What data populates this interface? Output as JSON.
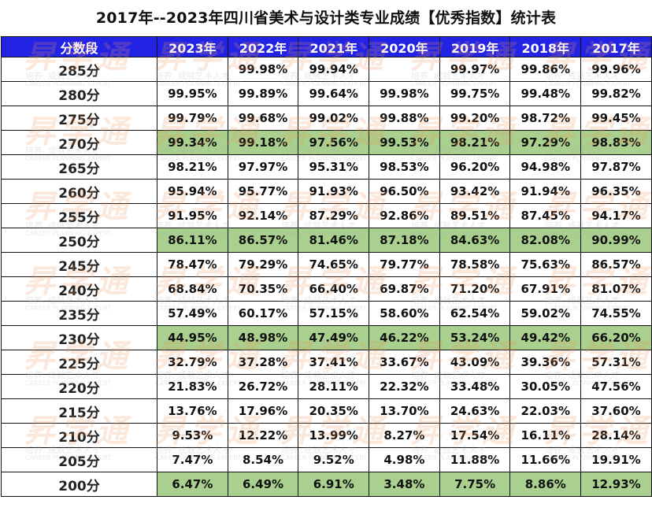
{
  "title": "2017年--2023年四川省美术与设计类专业成绩【优秀指数】统计表",
  "watermark": {
    "brand": "昇学通",
    "slogan": "培养. 成就艺术人才",
    "english": "CAREER PLANNING EXPERT",
    "color": "#ec965a"
  },
  "header": {
    "first": "分数段",
    "years": [
      "2023年",
      "2022年",
      "2021年",
      "2020年",
      "2019年",
      "2018年",
      "2017年"
    ],
    "color": "#2323e6"
  },
  "highlight_color": "#a9d08e",
  "rows": [
    {
      "score": "285分",
      "values": [
        "",
        "99.98%",
        "99.94%",
        "",
        "99.97%",
        "99.86%",
        "99.96%"
      ],
      "highlight": false
    },
    {
      "score": "280分",
      "values": [
        "99.95%",
        "99.89%",
        "99.64%",
        "99.98%",
        "99.75%",
        "99.48%",
        "99.82%"
      ],
      "highlight": false
    },
    {
      "score": "275分",
      "values": [
        "99.79%",
        "99.68%",
        "99.02%",
        "99.88%",
        "99.20%",
        "98.72%",
        "99.45%"
      ],
      "highlight": false
    },
    {
      "score": "270分",
      "values": [
        "99.34%",
        "99.18%",
        "97.56%",
        "99.53%",
        "98.21%",
        "97.29%",
        "98.83%"
      ],
      "highlight": true
    },
    {
      "score": "265分",
      "values": [
        "98.21%",
        "97.97%",
        "95.31%",
        "98.53%",
        "96.20%",
        "94.98%",
        "97.87%"
      ],
      "highlight": false
    },
    {
      "score": "260分",
      "values": [
        "95.94%",
        "95.77%",
        "91.93%",
        "96.50%",
        "93.42%",
        "91.94%",
        "96.35%"
      ],
      "highlight": false
    },
    {
      "score": "255分",
      "values": [
        "91.95%",
        "92.14%",
        "87.29%",
        "92.86%",
        "89.51%",
        "87.45%",
        "94.17%"
      ],
      "highlight": false
    },
    {
      "score": "250分",
      "values": [
        "86.11%",
        "86.57%",
        "81.46%",
        "87.18%",
        "84.63%",
        "82.08%",
        "90.99%"
      ],
      "highlight": true
    },
    {
      "score": "245分",
      "values": [
        "78.47%",
        "79.29%",
        "74.65%",
        "79.77%",
        "78.58%",
        "75.63%",
        "86.57%"
      ],
      "highlight": false
    },
    {
      "score": "240分",
      "values": [
        "68.84%",
        "70.35%",
        "66.40%",
        "69.87%",
        "71.20%",
        "67.91%",
        "81.07%"
      ],
      "highlight": false
    },
    {
      "score": "235分",
      "values": [
        "57.49%",
        "60.17%",
        "57.15%",
        "58.60%",
        "62.54%",
        "59.02%",
        "74.55%"
      ],
      "highlight": false
    },
    {
      "score": "230分",
      "values": [
        "44.95%",
        "48.98%",
        "47.49%",
        "46.22%",
        "53.24%",
        "49.42%",
        "66.20%"
      ],
      "highlight": true
    },
    {
      "score": "225分",
      "values": [
        "32.79%",
        "37.28%",
        "37.41%",
        "33.67%",
        "43.09%",
        "39.36%",
        "57.31%"
      ],
      "highlight": false
    },
    {
      "score": "220分",
      "values": [
        "21.83%",
        "26.72%",
        "28.11%",
        "22.32%",
        "33.48%",
        "30.05%",
        "47.56%"
      ],
      "highlight": false
    },
    {
      "score": "215分",
      "values": [
        "13.76%",
        "17.96%",
        "20.35%",
        "13.70%",
        "24.63%",
        "22.03%",
        "37.60%"
      ],
      "highlight": false
    },
    {
      "score": "210分",
      "values": [
        "9.53%",
        "12.22%",
        "13.99%",
        "8.27%",
        "17.54%",
        "16.11%",
        "28.14%"
      ],
      "highlight": false
    },
    {
      "score": "205分",
      "values": [
        "7.47%",
        "8.54%",
        "9.52%",
        "4.98%",
        "11.88%",
        "11.66%",
        "19.91%"
      ],
      "highlight": false
    },
    {
      "score": "200分",
      "values": [
        "6.47%",
        "6.49%",
        "6.91%",
        "3.48%",
        "7.75%",
        "8.86%",
        "12.93%"
      ],
      "highlight": true
    }
  ]
}
